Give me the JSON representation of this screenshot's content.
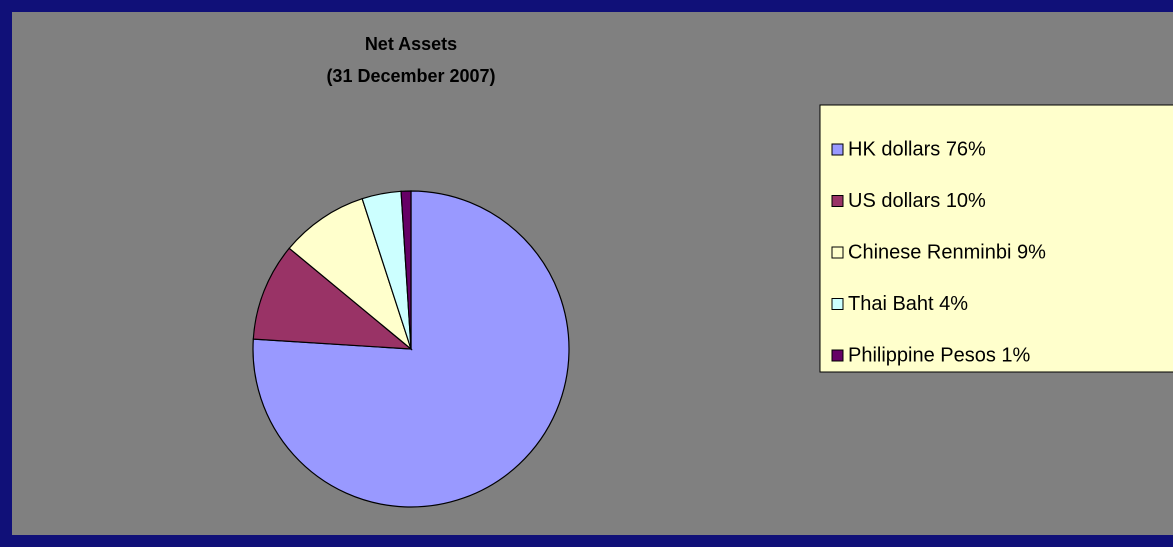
{
  "chart_data": {
    "type": "pie",
    "title": "Net Assets",
    "subtitle": "(31 December 2007)",
    "categories": [
      "HK dollars 76%",
      "US dollars 10%",
      "Chinese Renminbi 9%",
      "Thai Baht 4%",
      "Philippine Pesos 1%"
    ],
    "values": [
      76,
      10,
      9,
      4,
      1
    ],
    "colors": [
      "#9999ff",
      "#993366",
      "#ffffcc",
      "#ccffff",
      "#660066"
    ],
    "legend": "right"
  }
}
